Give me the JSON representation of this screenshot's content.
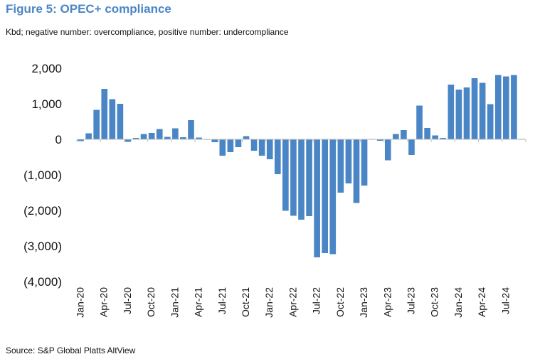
{
  "title": "Figure 5: OPEC+ compliance",
  "subtitle": "Kbd; negative number: overcompliance, positive number: undercompliance",
  "source": "Source: S&P Global Platts AltView",
  "chart_data": {
    "type": "bar",
    "ylim": [
      -4000,
      2000
    ],
    "yticks": [
      2000,
      1000,
      0,
      -1000,
      -2000,
      -3000,
      -4000
    ],
    "ytick_labels": [
      "2,000",
      "1,000",
      "0",
      "(1,000)",
      "(2,000)",
      "(3,000)",
      "(4,000)"
    ],
    "xtick_labels": [
      {
        "index": 0,
        "label": "Jan-20"
      },
      {
        "index": 3,
        "label": "Apr-20"
      },
      {
        "index": 6,
        "label": "Jul-20"
      },
      {
        "index": 9,
        "label": "Oct-20"
      },
      {
        "index": 12,
        "label": "Jan-21"
      },
      {
        "index": 15,
        "label": "Apr-21"
      },
      {
        "index": 18,
        "label": "Jul-21"
      },
      {
        "index": 21,
        "label": "Oct-21"
      },
      {
        "index": 24,
        "label": "Jan-22"
      },
      {
        "index": 27,
        "label": "Apr-22"
      },
      {
        "index": 30,
        "label": "Jul-22"
      },
      {
        "index": 33,
        "label": "Oct-22"
      },
      {
        "index": 36,
        "label": "Jan-23"
      },
      {
        "index": 39,
        "label": "Apr-23"
      },
      {
        "index": 42,
        "label": "Jul-23"
      },
      {
        "index": 45,
        "label": "Oct-23"
      },
      {
        "index": 48,
        "label": "Jan-24"
      },
      {
        "index": 51,
        "label": "Apr-24"
      },
      {
        "index": 54,
        "label": "Jul-24"
      }
    ],
    "categories": [
      "Jan-20",
      "Feb-20",
      "Mar-20",
      "Apr-20",
      "May-20",
      "Jun-20",
      "Jul-20",
      "Aug-20",
      "Sep-20",
      "Oct-20",
      "Nov-20",
      "Dec-20",
      "Jan-21",
      "Feb-21",
      "Mar-21",
      "Apr-21",
      "May-21",
      "Jun-21",
      "Jul-21",
      "Aug-21",
      "Sep-21",
      "Oct-21",
      "Nov-21",
      "Dec-21",
      "Jan-22",
      "Feb-22",
      "Mar-22",
      "Apr-22",
      "May-22",
      "Jun-22",
      "Jul-22",
      "Aug-22",
      "Sep-22",
      "Oct-22",
      "Nov-22",
      "Dec-22",
      "Jan-23",
      "Feb-23",
      "Mar-23",
      "Apr-23",
      "May-23",
      "Jun-23",
      "Jul-23",
      "Aug-23",
      "Sep-23",
      "Oct-23",
      "Nov-23",
      "Dec-23",
      "Jan-24",
      "Feb-24",
      "Mar-24",
      "Apr-24",
      "May-24",
      "Jun-24",
      "Jul-24",
      "Aug-24",
      "Sep-24"
    ],
    "values": [
      -50,
      170,
      830,
      1420,
      1130,
      1000,
      -70,
      40,
      150,
      180,
      290,
      70,
      310,
      60,
      540,
      50,
      0,
      -80,
      -460,
      -360,
      -220,
      90,
      -320,
      -460,
      -560,
      -980,
      -2010,
      -2150,
      -2260,
      -2160,
      -3320,
      -3200,
      -3230,
      -1500,
      -1240,
      -1790,
      -1300,
      0,
      -40,
      -590,
      150,
      260,
      -440,
      950,
      320,
      110,
      40,
      1540,
      1400,
      1460,
      1720,
      1590,
      990,
      1810,
      1770,
      1810,
      0
    ],
    "bar_color": "#4a86c5",
    "grid": false,
    "legend": "none"
  }
}
